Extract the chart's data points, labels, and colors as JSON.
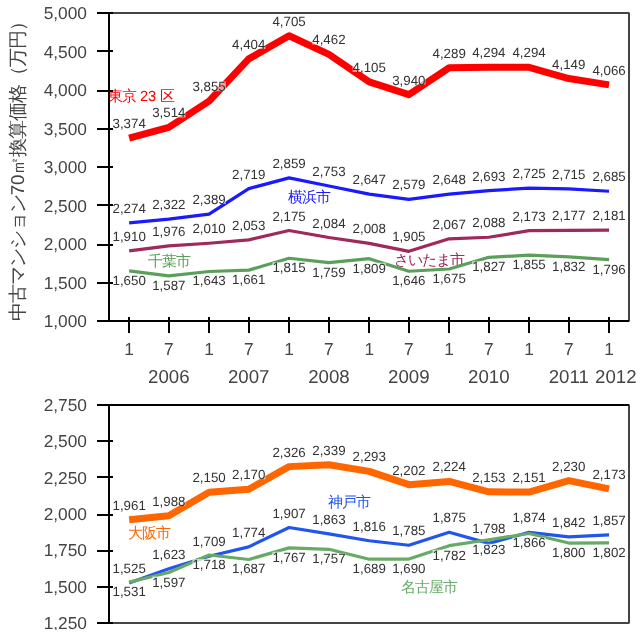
{
  "chart_data": [
    {
      "type": "line",
      "ylabel": "中古マンション70㎡換算価格（万円）",
      "x": [
        "2006-01",
        "2006-07",
        "2007-01",
        "2007-07",
        "2008-01",
        "2008-07",
        "2009-01",
        "2009-07",
        "2010-01",
        "2010-07",
        "2011-01",
        "2011-07",
        "2012-01"
      ],
      "series": [
        {
          "name": "東京 23 区",
          "color": "#ff0000",
          "values": [
            3374,
            3514,
            3855,
            4404,
            4705,
            4462,
            4105,
            3940,
            4289,
            4294,
            4294,
            4149,
            4066
          ],
          "value_labels": [
            "3,374",
            "3,514",
            "3,855",
            "4,404",
            "4,705",
            "4,462",
            "4,105",
            "3,940",
            "4,289",
            "4,294",
            "4,294",
            "4,149",
            "4,066"
          ]
        },
        {
          "name": "横浜市",
          "color": "#1a1aff",
          "values": [
            2274,
            2322,
            2389,
            2719,
            2859,
            2753,
            2647,
            2579,
            2648,
            2693,
            2725,
            2715,
            2685
          ],
          "value_labels": [
            "2,274",
            "2,322",
            "2,389",
            "2,719",
            "2,859",
            "2,753",
            "2,647",
            "2,579",
            "2,648",
            "2,693",
            "2,725",
            "2,715",
            "2,685"
          ]
        },
        {
          "name": "さいたま市",
          "color": "#a0285a",
          "values": [
            1910,
            1976,
            2010,
            2053,
            2175,
            2084,
            2008,
            1905,
            2067,
            2088,
            2173,
            2177,
            2181
          ],
          "value_labels": [
            "1,910",
            "1,976",
            "2,010",
            "2,053",
            "2,175",
            "2,084",
            "2,008",
            "1,905",
            "2,067",
            "2,088",
            "2,173",
            "2,177",
            "2,181"
          ]
        },
        {
          "name": "千葉市",
          "color": "#5aa05a",
          "values": [
            1650,
            1587,
            1643,
            1661,
            1815,
            1759,
            1809,
            1646,
            1675,
            1827,
            1855,
            1832,
            1796
          ],
          "value_labels": [
            "1,650",
            "1,587",
            "1,643",
            "1,661",
            "1,815",
            "1,759",
            "1,809",
            "1,646",
            "1,675",
            "1,827",
            "1,855",
            "1,832",
            "1,796"
          ]
        }
      ],
      "grid": false,
      "marker": "none",
      "line_style": "solid",
      "xlim": [
        "2005-10",
        "2012-04"
      ],
      "xticks": [
        {
          "value": "2006-01",
          "label": "1"
        },
        {
          "value": "2006-07",
          "label": "7"
        },
        {
          "value": "2007-01",
          "label": "1"
        },
        {
          "value": "2007-07",
          "label": "7"
        },
        {
          "value": "2008-01",
          "label": "1"
        },
        {
          "value": "2008-07",
          "label": "7"
        },
        {
          "value": "2009-01",
          "label": "1"
        },
        {
          "value": "2009-07",
          "label": "7"
        },
        {
          "value": "2010-01",
          "label": "1"
        },
        {
          "value": "2010-07",
          "label": "7"
        },
        {
          "value": "2011-01",
          "label": "1"
        },
        {
          "value": "2011-07",
          "label": "7"
        },
        {
          "value": "2012-01",
          "label": "1"
        }
      ],
      "ylim": [
        1000,
        5000
      ],
      "yticks": [
        {
          "value": 1000,
          "label": "1,000"
        },
        {
          "value": 1500,
          "label": "1,500"
        },
        {
          "value": 2000,
          "label": "2,000"
        },
        {
          "value": 2500,
          "label": "2,500"
        },
        {
          "value": 3000,
          "label": "3,000"
        },
        {
          "value": 3500,
          "label": "3,500"
        },
        {
          "value": 4000,
          "label": "4,000"
        },
        {
          "value": 4500,
          "label": "4,500"
        },
        {
          "value": 5000,
          "label": "5,000"
        }
      ]
    },
    {
      "type": "line",
      "x": [
        "2006-01",
        "2006-07",
        "2007-01",
        "2007-07",
        "2008-01",
        "2008-07",
        "2009-01",
        "2009-07",
        "2010-01",
        "2010-07",
        "2011-01",
        "2011-07",
        "2012-01"
      ],
      "series": [
        {
          "name": "大阪市",
          "color": "#ff6600",
          "values": [
            1961,
            1988,
            2150,
            2170,
            2326,
            2339,
            2293,
            2202,
            2224,
            2153,
            2151,
            2230,
            2173
          ],
          "value_labels": [
            "1,961",
            "1,988",
            "2,150",
            "2,170",
            "2,326",
            "2,339",
            "2,293",
            "2,202",
            "2,224",
            "2,153",
            "2,151",
            "2,230",
            "2,173"
          ]
        },
        {
          "name": "神戸市",
          "color": "#2255ee",
          "values": [
            1525,
            1623,
            1709,
            1774,
            1907,
            1863,
            1816,
            1785,
            1875,
            1798,
            1874,
            1842,
            1857
          ],
          "value_labels": [
            "1,525",
            "1,623",
            "1,709",
            "1,774",
            "1,907",
            "1,863",
            "1,816",
            "1,785",
            "1,875",
            "1,798",
            "1,874",
            "1,842",
            "1,857"
          ]
        },
        {
          "name": "名古屋市",
          "color": "#66aa66",
          "values": [
            1531,
            1597,
            1718,
            1687,
            1767,
            1757,
            1689,
            1690,
            1782,
            1823,
            1866,
            1800,
            1802
          ],
          "value_labels": [
            "1,531",
            "1,597",
            "1,718",
            "1,687",
            "1,767",
            "1,757",
            "1,689",
            "1,690",
            "1,782",
            "1,823",
            "1,866",
            "1,800",
            "1,802"
          ]
        }
      ],
      "grid": false,
      "marker": "none",
      "line_style": "solid",
      "tick_labels": "y",
      "xlim": [
        "2005-10",
        "2012-04"
      ],
      "x2lim": [
        "2005-10",
        "2012-04"
      ],
      "x2ticks": [
        {
          "value": "2006-07",
          "label": "2006"
        },
        {
          "value": "2007-07",
          "label": "2007"
        },
        {
          "value": "2008-07",
          "label": "2008"
        },
        {
          "value": "2009-07",
          "label": "2009"
        },
        {
          "value": "2010-07",
          "label": "2010"
        },
        {
          "value": "2011-07",
          "label": "2011"
        },
        {
          "value": "2012-02",
          "label": "2012"
        }
      ],
      "ylim": [
        1250,
        2750
      ],
      "yticks": [
        {
          "value": 1250,
          "label": "1,250"
        },
        {
          "value": 1500,
          "label": "1,500"
        },
        {
          "value": 1750,
          "label": "1,750"
        },
        {
          "value": 2000,
          "label": "2,000"
        },
        {
          "value": 2250,
          "label": "2,250"
        },
        {
          "value": 2500,
          "label": "2,500"
        },
        {
          "value": 2750,
          "label": "2,750"
        }
      ]
    }
  ]
}
